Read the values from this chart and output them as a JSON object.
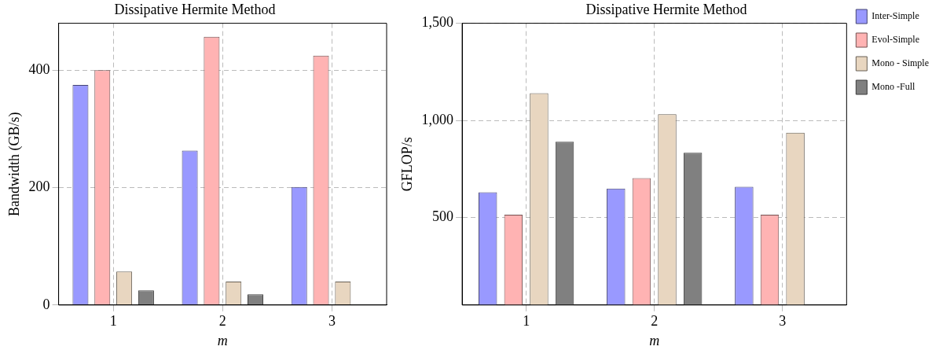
{
  "chart_data": [
    {
      "type": "bar",
      "title": "Dissipative Hermite Method",
      "xlabel": "m",
      "ylabel": "Bandwidth (GB/s)",
      "categories": [
        "1",
        "2",
        "3"
      ],
      "ylim": [
        0,
        480
      ],
      "yticks": [
        0,
        200,
        400
      ],
      "grid": true,
      "legend": false,
      "series": [
        {
          "color": "#9999ff",
          "values": [
            375,
            263,
            201
          ]
        },
        {
          "color": "#ffb3b3",
          "values": [
            400,
            457,
            425
          ]
        },
        {
          "color": "#e8d6c0",
          "values": [
            57,
            40,
            40
          ]
        },
        {
          "color": "#808080",
          "values": [
            25,
            18,
            null
          ]
        }
      ]
    },
    {
      "type": "bar",
      "title": "Dissipative Hermite Method",
      "xlabel": "m",
      "ylabel": "GFLOP/s",
      "categories": [
        "1",
        "2",
        "3"
      ],
      "ylim": [
        50,
        1500
      ],
      "yticks": [
        {
          "value": 500,
          "label": "500"
        },
        {
          "value": 1000,
          "label": "1,000"
        },
        {
          "value": 1500,
          "label": "1,500"
        }
      ],
      "grid": true,
      "legend": "right",
      "series": [
        {
          "name": "Inter-Simple",
          "color": "#9999ff",
          "values": [
            630,
            649,
            658
          ]
        },
        {
          "name": "Evol-Simple",
          "color": "#ffb3b3",
          "values": [
            515,
            703,
            515
          ]
        },
        {
          "name": "Mono - Simple",
          "color": "#e8d6c0",
          "values": [
            1140,
            1032,
            937
          ]
        },
        {
          "name": "Mono -Full",
          "color": "#808080",
          "values": [
            890,
            833,
            null
          ]
        }
      ]
    }
  ]
}
